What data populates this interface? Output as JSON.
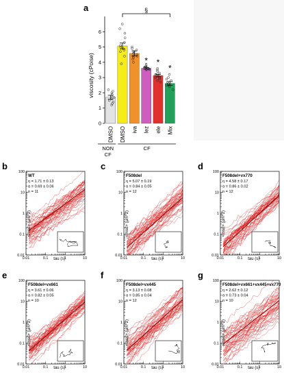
{
  "chart_data": [
    {
      "panel": "a",
      "type": "bar",
      "ylabel": "viscosity (cPoise)",
      "ylim": [
        0,
        7
      ],
      "yticks": [
        0,
        1,
        2,
        3,
        4,
        5,
        6
      ],
      "categories": [
        "DMSO",
        "DMSO",
        "iva",
        "lez",
        "ele",
        "Mix"
      ],
      "values": [
        1.71,
        5.07,
        4.58,
        3.61,
        3.13,
        2.62
      ],
      "errors": [
        0.13,
        0.19,
        0.17,
        0.06,
        0.08,
        0.12
      ],
      "colors": [
        "#e3e3e3",
        "#f5ec1a",
        "#f0922b",
        "#cf5cbf",
        "#e0312f",
        "#23a05a"
      ],
      "groups": [
        {
          "label_lines": [
            "NON",
            "CF"
          ],
          "categories": [
            0
          ]
        },
        {
          "label": "CF",
          "categories": [
            1,
            2,
            3,
            4,
            5
          ]
        }
      ],
      "significance": {
        "bracket_from": 1,
        "bracket_to": 5,
        "bracket_label": "§",
        "star": "*",
        "star_on": [
          3,
          4,
          5
        ],
        "sec_label": "§",
        "sec_on": [
          3
        ]
      },
      "points": [
        [
          1.2,
          1.5,
          1.6,
          1.7,
          1.8,
          2.0,
          2.2,
          1.4,
          1.9,
          2.1,
          1.3
        ],
        [
          3.9,
          4.4,
          4.7,
          4.9,
          5.0,
          5.1,
          5.3,
          5.6,
          5.9,
          6.2,
          6.5,
          4.8
        ],
        [
          4.0,
          4.2,
          4.3,
          4.4,
          4.5,
          4.6,
          4.7,
          4.8,
          4.9,
          5.0,
          4.4,
          4.6
        ],
        [
          3.5,
          3.55,
          3.6,
          3.6,
          3.65,
          3.7,
          3.55,
          3.6,
          3.7,
          3.55
        ],
        [
          2.7,
          2.9,
          3.0,
          3.1,
          3.2,
          3.3,
          3.4,
          3.0,
          3.2,
          3.5,
          2.8,
          3.6
        ],
        [
          2.2,
          2.4,
          2.5,
          2.6,
          2.7,
          2.8,
          2.9,
          3.0,
          2.5,
          3.2
        ]
      ]
    },
    {
      "panel": "b",
      "type": "line",
      "title": "WT",
      "lines": [
        "η = 1.71 ± 0.13",
        "α = 0.69 ± 0.06",
        "n = 11"
      ],
      "eta": 1.71,
      "alpha": 0.69,
      "n": 11,
      "xlabel": "tau (s)",
      "ylabel": "<msd> (µm^2)",
      "xlim": [
        0.01,
        10
      ],
      "ylim": [
        0.01,
        100
      ],
      "xtick_labels": [
        "0.01",
        "0.1",
        "1",
        "10"
      ],
      "ytick_labels": [
        "0.01",
        "0.1",
        "1",
        "10",
        "100"
      ]
    },
    {
      "panel": "c",
      "type": "line",
      "title": "F508del",
      "lines": [
        "η = 5.07 ± 0.19",
        "α = 0.84 ± 0.05",
        "n = 12"
      ],
      "eta": 5.07,
      "alpha": 0.84,
      "n": 12,
      "xlabel": "tau (s)",
      "ylabel": "<msd> (µm^2)",
      "xlim": [
        0.01,
        10
      ],
      "ylim": [
        0.01,
        100
      ],
      "xtick_labels": [
        "0.01",
        "0.1",
        "1",
        "10"
      ],
      "ytick_labels": [
        "0.01",
        "0.1",
        "1",
        "10",
        "100"
      ]
    },
    {
      "panel": "d",
      "type": "line",
      "title": "F508del+vx770",
      "lines": [
        "η = 4.58 ± 0.17",
        "α = 0.86 ± 0.02",
        "n = 12"
      ],
      "eta": 4.58,
      "alpha": 0.86,
      "n": 12,
      "xlabel": "tau (s)",
      "ylabel": "<msd> (µm^2)",
      "xlim": [
        0.01,
        10
      ],
      "ylim": [
        0.01,
        100
      ],
      "xtick_labels": [
        "0.01",
        "0.1",
        "1",
        "10"
      ],
      "ytick_labels": [
        "0.01",
        "0.1",
        "1",
        "10",
        "100"
      ]
    },
    {
      "panel": "e",
      "type": "line",
      "title": "F508del+vx661",
      "lines": [
        "η = 3.61 ± 0.06",
        "α = 0.82 ± 0.05",
        "n = 10"
      ],
      "eta": 3.61,
      "alpha": 0.82,
      "n": 10,
      "xlabel": "tau (s)",
      "ylabel": "<msd> (µm^2)",
      "xlim": [
        0.01,
        10
      ],
      "ylim": [
        0.01,
        100
      ],
      "xtick_labels": [
        "0.01",
        "0.1",
        "1",
        "10"
      ],
      "ytick_labels": [
        "0.01",
        "0.1",
        "1",
        "10",
        "100"
      ]
    },
    {
      "panel": "f",
      "type": "line",
      "title": "F508del+vx445",
      "lines": [
        "η = 3.13 ± 0.08",
        "α = 0.85 ± 0.04",
        "n = 12"
      ],
      "eta": 3.13,
      "alpha": 0.85,
      "n": 12,
      "xlabel": "tau (s)",
      "ylabel": "<msd> (µm^2)",
      "xlim": [
        0.01,
        10
      ],
      "ylim": [
        0.01,
        100
      ],
      "xtick_labels": [
        "0.01",
        "0.1",
        "1",
        "10"
      ],
      "ytick_labels": [
        "0.01",
        "0.1",
        "1",
        "10",
        "100"
      ]
    },
    {
      "panel": "g",
      "type": "line",
      "title": "F508del+vx661+vx445+vx770",
      "lines": [
        "η = 2.62 ± 0.12",
        "α = 0.73 ± 0.04",
        "n = 10"
      ],
      "eta": 2.62,
      "alpha": 0.73,
      "n": 10,
      "xlabel": "tau (s)",
      "ylabel": "<msd> (µm^2)",
      "xlim": [
        0.01,
        10
      ],
      "ylim": [
        0.01,
        100
      ],
      "xtick_labels": [
        "0.01",
        "0.1",
        "1",
        "10"
      ],
      "ytick_labels": [
        "0.01",
        "0.1",
        "1",
        "10",
        "100"
      ]
    }
  ],
  "style": {
    "trace_color": "#dd1c1c",
    "mean_color": "#8b0a0a",
    "axis_color": "#000000"
  }
}
